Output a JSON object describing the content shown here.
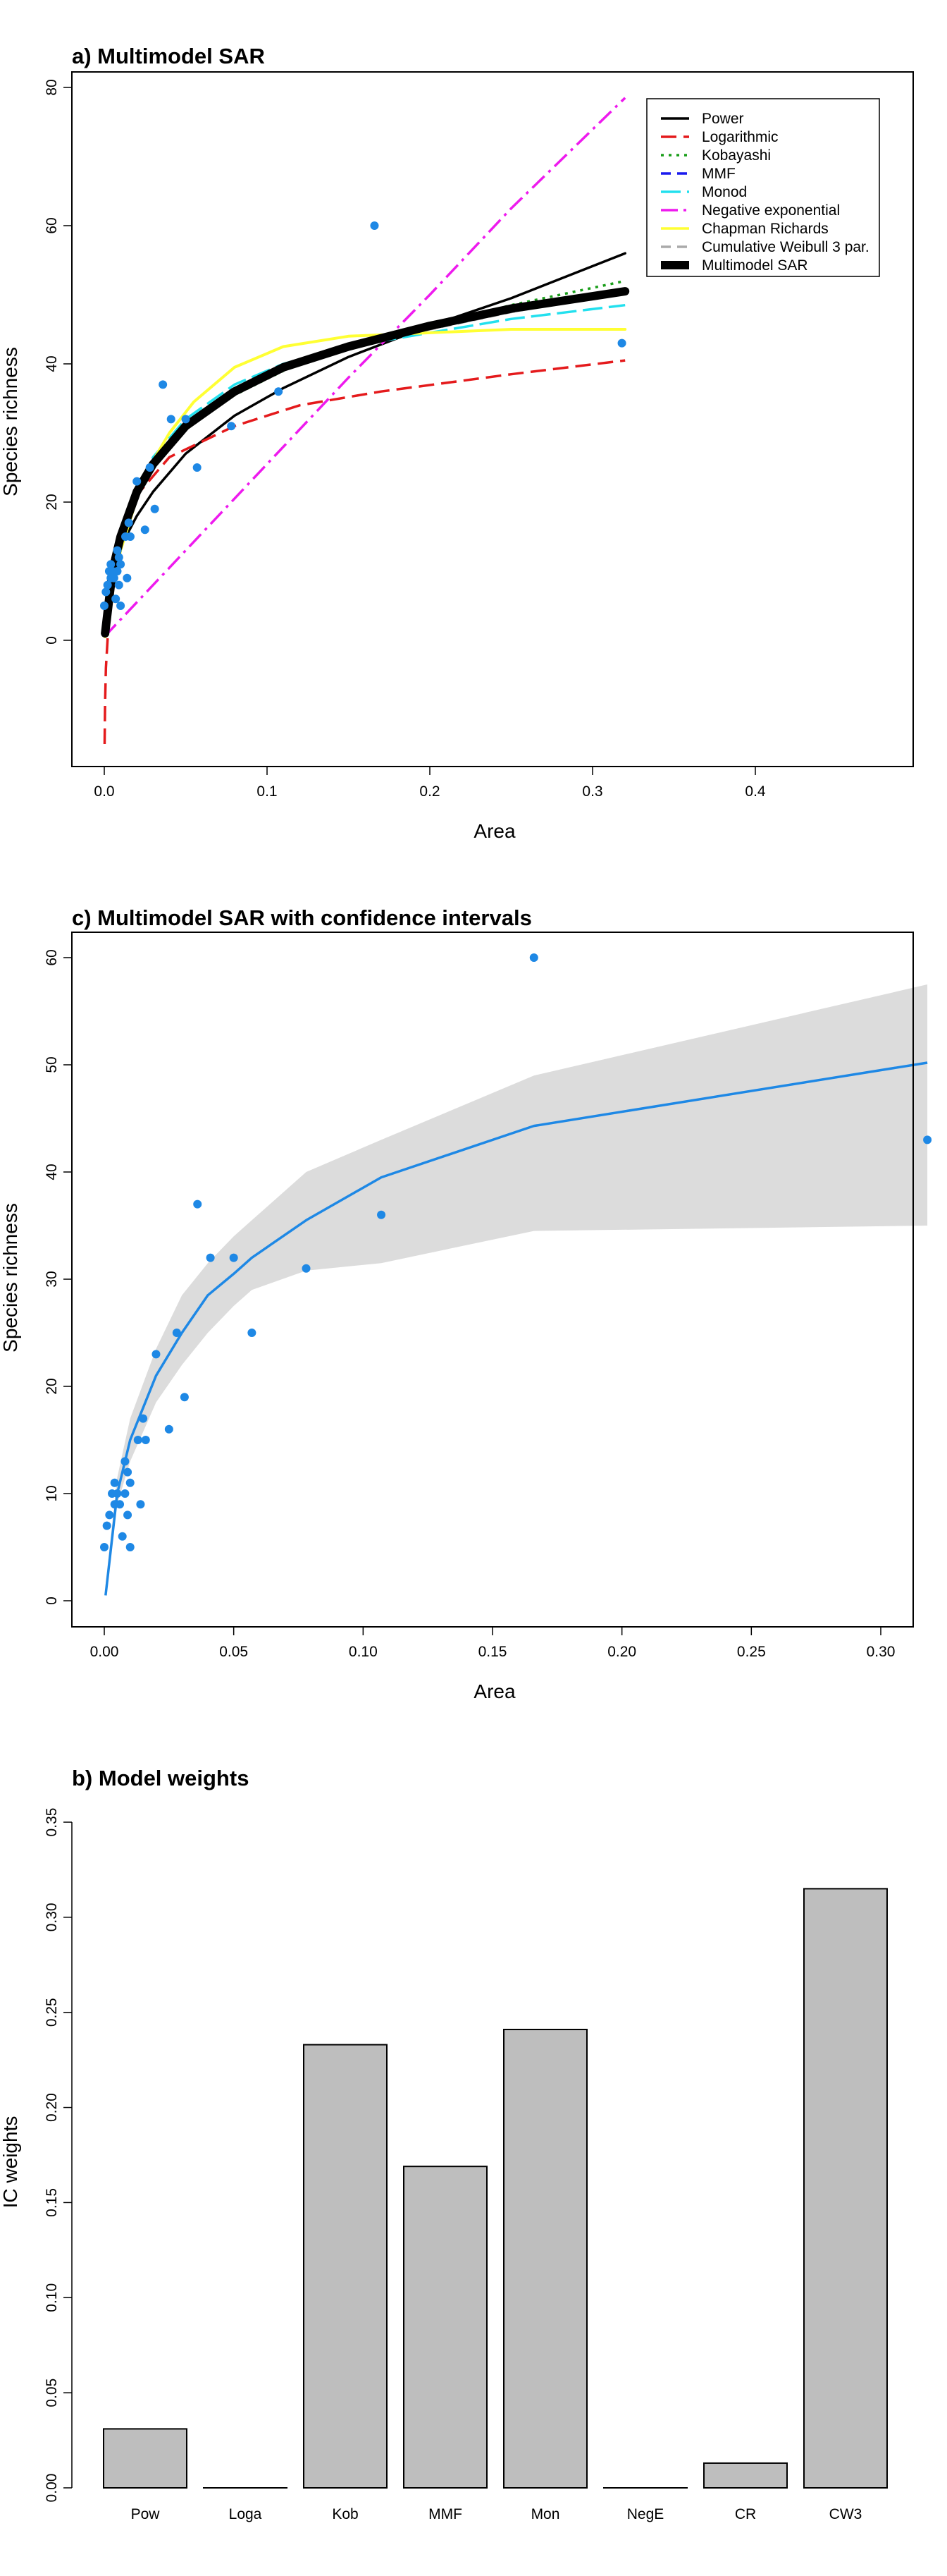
{
  "chart_data": [
    {
      "type": "line",
      "title": "a) Multimodel SAR",
      "xlabel": "Area",
      "ylabel": "Species richness",
      "xlim": [
        0,
        0.4
      ],
      "ylim": [
        0,
        80
      ],
      "xticks": [
        0.0,
        0.1,
        0.2,
        0.3,
        0.4
      ],
      "xtick_labels": [
        "0.0",
        "0.1",
        "0.2",
        "0.3",
        "0.4"
      ],
      "yticks": [
        0,
        20,
        40,
        60,
        80
      ],
      "ytick_labels": [
        "0",
        "20",
        "40",
        "60",
        "80"
      ],
      "legend_position": "top-right",
      "grid": false,
      "observed": [
        {
          "x": 0.0,
          "y": 5
        },
        {
          "x": 0.001,
          "y": 7
        },
        {
          "x": 0.002,
          "y": 8
        },
        {
          "x": 0.003,
          "y": 10
        },
        {
          "x": 0.004,
          "y": 11
        },
        {
          "x": 0.004,
          "y": 9
        },
        {
          "x": 0.005,
          "y": 10
        },
        {
          "x": 0.006,
          "y": 9
        },
        {
          "x": 0.007,
          "y": 6
        },
        {
          "x": 0.008,
          "y": 13
        },
        {
          "x": 0.008,
          "y": 10
        },
        {
          "x": 0.009,
          "y": 12
        },
        {
          "x": 0.009,
          "y": 8
        },
        {
          "x": 0.01,
          "y": 11
        },
        {
          "x": 0.01,
          "y": 5
        },
        {
          "x": 0.013,
          "y": 15
        },
        {
          "x": 0.014,
          "y": 9
        },
        {
          "x": 0.015,
          "y": 17
        },
        {
          "x": 0.016,
          "y": 15
        },
        {
          "x": 0.02,
          "y": 23
        },
        {
          "x": 0.025,
          "y": 16
        },
        {
          "x": 0.028,
          "y": 25
        },
        {
          "x": 0.031,
          "y": 19
        },
        {
          "x": 0.036,
          "y": 37
        },
        {
          "x": 0.041,
          "y": 32
        },
        {
          "x": 0.05,
          "y": 32
        },
        {
          "x": 0.057,
          "y": 25
        },
        {
          "x": 0.078,
          "y": 31
        },
        {
          "x": 0.107,
          "y": 36
        },
        {
          "x": 0.166,
          "y": 60
        },
        {
          "x": 0.318,
          "y": 43
        }
      ],
      "series": [
        {
          "name": "Power",
          "color": "#000000",
          "dash": "solid",
          "x": [
            0.0005,
            0.005,
            0.01,
            0.02,
            0.03,
            0.05,
            0.08,
            0.11,
            0.15,
            0.2,
            0.25,
            0.32
          ],
          "y": [
            3.5,
            10,
            13.5,
            18,
            21.5,
            27,
            32.5,
            36.5,
            41,
            45.5,
            49.5,
            56
          ]
        },
        {
          "name": "Logarithmic",
          "color": "#e41a1c",
          "dash": "long",
          "x": [
            0.0002,
            0.0005,
            0.001,
            0.003,
            0.006,
            0.01,
            0.02,
            0.04,
            0.08,
            0.12,
            0.17,
            0.25,
            0.32
          ],
          "y": [
            -15,
            -9,
            -4,
            4,
            10,
            14.5,
            21,
            26.5,
            31,
            34,
            36,
            38.5,
            40.5
          ]
        },
        {
          "name": "Kobayashi",
          "color": "#1a9e1a",
          "dash": "dotted",
          "x": [
            0.0005,
            0.005,
            0.01,
            0.02,
            0.03,
            0.05,
            0.08,
            0.11,
            0.15,
            0.2,
            0.25,
            0.32
          ],
          "y": [
            1.5,
            10,
            14.5,
            21,
            25,
            30.5,
            35.5,
            39,
            42.5,
            45.5,
            48.5,
            52
          ]
        },
        {
          "name": "MMF",
          "color": "#1a1aee",
          "dash": "dashed",
          "x": [
            0.0005,
            0.005,
            0.01,
            0.02,
            0.03,
            0.05,
            0.08,
            0.11,
            0.15,
            0.2,
            0.25,
            0.32
          ],
          "y": [
            1,
            10,
            15,
            21.5,
            25.5,
            31,
            36,
            39.5,
            42.5,
            45.5,
            48,
            50.5
          ]
        },
        {
          "name": "Monod",
          "color": "#22e0ee",
          "dash": "longdash",
          "x": [
            0.0005,
            0.005,
            0.01,
            0.02,
            0.03,
            0.05,
            0.08,
            0.11,
            0.15,
            0.2,
            0.25,
            0.32
          ],
          "y": [
            1,
            10.5,
            15.5,
            22,
            26.5,
            32,
            37,
            40,
            42.5,
            44.5,
            46.5,
            48.5
          ]
        },
        {
          "name": "Negative exponential",
          "color": "#ee1aee",
          "dash": "dashdot",
          "x": [
            0.0,
            0.05,
            0.1,
            0.15,
            0.2,
            0.25,
            0.32
          ],
          "y": [
            0.5,
            13,
            25.5,
            38,
            50,
            62.5,
            78.5
          ]
        },
        {
          "name": "Chapman Richards",
          "color": "#ffff33",
          "dash": "solid",
          "x": [
            0.0005,
            0.005,
            0.01,
            0.02,
            0.03,
            0.04,
            0.055,
            0.08,
            0.11,
            0.15,
            0.2,
            0.25,
            0.32
          ],
          "y": [
            0.5,
            7,
            13,
            20.5,
            26,
            30,
            34.5,
            39.5,
            42.5,
            44,
            44.5,
            45,
            45
          ]
        },
        {
          "name": "Cumulative Weibull 3 par.",
          "color": "#aaaaaa",
          "dash": "dashed",
          "x": [
            0.0005,
            0.005,
            0.01,
            0.02,
            0.03,
            0.05,
            0.08,
            0.11,
            0.15,
            0.2,
            0.25,
            0.32
          ],
          "y": [
            1.5,
            10,
            14.5,
            21.5,
            25.5,
            31,
            36,
            39.5,
            42.5,
            45,
            47.5,
            50.5
          ]
        },
        {
          "name": "Multimodel SAR",
          "color": "#000000",
          "dash": "thick",
          "x": [
            0.0005,
            0.005,
            0.01,
            0.02,
            0.03,
            0.05,
            0.08,
            0.11,
            0.15,
            0.2,
            0.25,
            0.32
          ],
          "y": [
            1,
            10,
            15,
            21.5,
            25.5,
            31,
            36,
            39.5,
            42.5,
            45.5,
            48,
            50.5
          ]
        }
      ]
    },
    {
      "type": "line",
      "title": "c) Multimodel SAR with confidence intervals",
      "xlabel": "Area",
      "ylabel": "Species richness",
      "xlim": [
        0,
        0.32
      ],
      "ylim": [
        0,
        60
      ],
      "xticks": [
        0.0,
        0.05,
        0.1,
        0.15,
        0.2,
        0.25,
        0.3
      ],
      "xtick_labels": [
        "0.00",
        "0.05",
        "0.10",
        "0.15",
        "0.20",
        "0.25",
        "0.30"
      ],
      "yticks": [
        0,
        10,
        20,
        30,
        40,
        50,
        60
      ],
      "ytick_labels": [
        "0",
        "10",
        "20",
        "30",
        "40",
        "50",
        "60"
      ],
      "grid": false,
      "observed": [
        {
          "x": 0.0,
          "y": 5
        },
        {
          "x": 0.001,
          "y": 7
        },
        {
          "x": 0.002,
          "y": 8
        },
        {
          "x": 0.003,
          "y": 10
        },
        {
          "x": 0.004,
          "y": 11
        },
        {
          "x": 0.004,
          "y": 9
        },
        {
          "x": 0.005,
          "y": 10
        },
        {
          "x": 0.006,
          "y": 9
        },
        {
          "x": 0.007,
          "y": 6
        },
        {
          "x": 0.008,
          "y": 13
        },
        {
          "x": 0.008,
          "y": 10
        },
        {
          "x": 0.009,
          "y": 12
        },
        {
          "x": 0.009,
          "y": 8
        },
        {
          "x": 0.01,
          "y": 11
        },
        {
          "x": 0.01,
          "y": 5
        },
        {
          "x": 0.013,
          "y": 15
        },
        {
          "x": 0.014,
          "y": 9
        },
        {
          "x": 0.015,
          "y": 17
        },
        {
          "x": 0.016,
          "y": 15
        },
        {
          "x": 0.02,
          "y": 23
        },
        {
          "x": 0.025,
          "y": 16
        },
        {
          "x": 0.028,
          "y": 25
        },
        {
          "x": 0.031,
          "y": 19
        },
        {
          "x": 0.036,
          "y": 37
        },
        {
          "x": 0.041,
          "y": 32
        },
        {
          "x": 0.05,
          "y": 32
        },
        {
          "x": 0.057,
          "y": 25
        },
        {
          "x": 0.078,
          "y": 31
        },
        {
          "x": 0.107,
          "y": 36
        },
        {
          "x": 0.166,
          "y": 60
        },
        {
          "x": 0.318,
          "y": 43
        }
      ],
      "fit": {
        "x": [
          0.0005,
          0.005,
          0.01,
          0.02,
          0.03,
          0.04,
          0.05,
          0.057,
          0.078,
          0.107,
          0.166,
          0.318
        ],
        "y": [
          0.5,
          10,
          15,
          21,
          25,
          28.5,
          30.5,
          32,
          35.5,
          39.5,
          44.3,
          50.2
        ]
      },
      "confidence_band": {
        "x": [
          0.0005,
          0.005,
          0.01,
          0.02,
          0.03,
          0.04,
          0.05,
          0.057,
          0.078,
          0.107,
          0.166,
          0.318
        ],
        "lower": [
          0.5,
          9,
          13,
          18.5,
          22,
          25,
          27.5,
          29,
          30.8,
          31.5,
          34.5,
          35
        ],
        "upper": [
          1.5,
          11.5,
          17,
          23.5,
          28.5,
          31.5,
          34,
          35.5,
          40,
          43,
          49,
          57.5
        ]
      }
    },
    {
      "type": "bar",
      "title": "b) Model weights",
      "ylabel": "IC weights",
      "xlabel": "",
      "ylim": [
        0,
        0.35
      ],
      "yticks": [
        0.0,
        0.05,
        0.1,
        0.15,
        0.2,
        0.25,
        0.3,
        0.35
      ],
      "ytick_labels": [
        "0.00",
        "0.05",
        "0.10",
        "0.15",
        "0.20",
        "0.25",
        "0.30",
        "0.35"
      ],
      "bar_color": "#bebebe",
      "categories": [
        "Pow",
        "Loga",
        "Kob",
        "MMF",
        "Mon",
        "NegE",
        "CR",
        "CW3"
      ],
      "values": [
        0.031,
        0.0,
        0.233,
        0.169,
        0.241,
        0.0,
        0.013,
        0.315
      ]
    }
  ]
}
